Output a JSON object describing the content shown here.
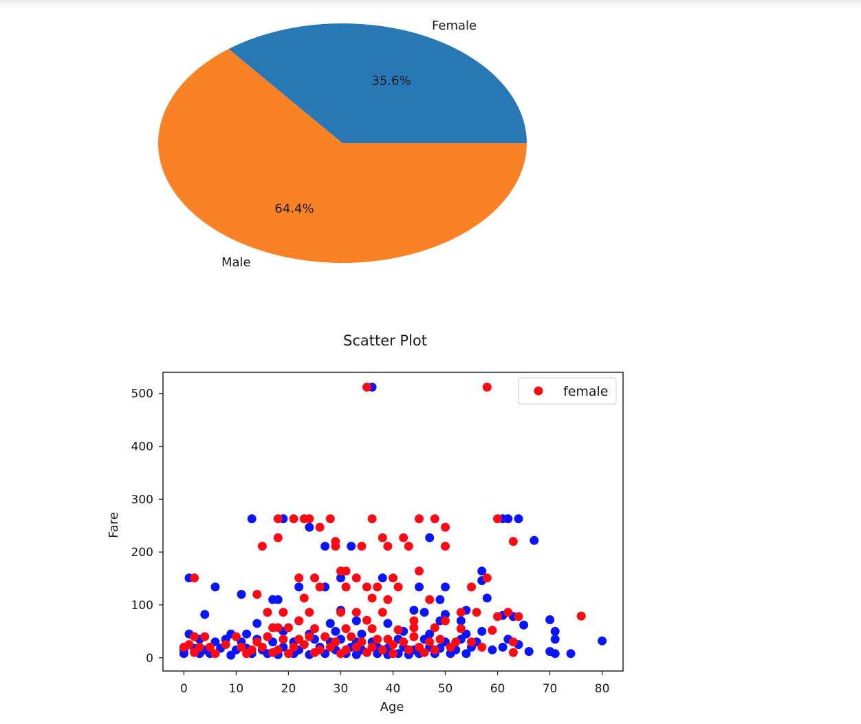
{
  "colors": {
    "female_slice": "#2878b5",
    "male_slice": "#f98227",
    "female_points": "#ff0a14",
    "male_points": "#0a14ff",
    "axis": "#222222"
  },
  "chart_data": [
    {
      "type": "pie",
      "slices": [
        {
          "label": "Female",
          "value": 35.6,
          "pct_label": "35.6%"
        },
        {
          "label": "Male",
          "value": 64.4,
          "pct_label": "64.4%"
        }
      ]
    },
    {
      "type": "scatter",
      "title": "Scatter Plot",
      "xlabel": "Age",
      "ylabel": "Fare",
      "xlim": [
        -4,
        84
      ],
      "ylim": [
        -25,
        540
      ],
      "xticks": [
        0,
        10,
        20,
        30,
        40,
        50,
        60,
        70,
        80
      ],
      "yticks": [
        0,
        100,
        200,
        300,
        400,
        500
      ],
      "legend": {
        "placement": "top-right",
        "entries": [
          "female"
        ]
      },
      "series": [
        {
          "name": "female",
          "color": "#ff0a14",
          "points": [
            [
              35,
              512
            ],
            [
              58,
              512
            ],
            [
              18,
              263
            ],
            [
              21,
              263
            ],
            [
              23,
              263
            ],
            [
              24,
              263
            ],
            [
              28,
              263
            ],
            [
              36,
              263
            ],
            [
              45,
              263
            ],
            [
              48,
              263
            ],
            [
              60,
              263
            ],
            [
              26,
              247
            ],
            [
              50,
              247
            ],
            [
              18,
              227
            ],
            [
              38,
              227
            ],
            [
              42,
              227
            ],
            [
              29,
              220
            ],
            [
              63,
              220
            ],
            [
              15,
              211
            ],
            [
              29,
              211
            ],
            [
              34,
              211
            ],
            [
              39,
              211
            ],
            [
              43,
              211
            ],
            [
              50,
              211
            ],
            [
              30,
              164
            ],
            [
              31,
              164
            ],
            [
              45,
              164
            ],
            [
              2,
              151
            ],
            [
              22,
              151
            ],
            [
              25,
              151
            ],
            [
              33,
              151
            ],
            [
              40,
              151
            ],
            [
              58,
              151
            ],
            [
              26,
              134
            ],
            [
              31,
              134
            ],
            [
              35,
              134
            ],
            [
              37,
              134
            ],
            [
              41,
              134
            ],
            [
              55,
              134
            ],
            [
              14,
              120
            ],
            [
              23,
              113
            ],
            [
              36,
              113
            ],
            [
              39,
              110
            ],
            [
              47,
              110
            ],
            [
              16,
              86
            ],
            [
              19,
              86
            ],
            [
              24,
              86
            ],
            [
              30,
              86
            ],
            [
              33,
              86
            ],
            [
              38,
              86
            ],
            [
              53,
              86
            ],
            [
              56,
              86
            ],
            [
              62,
              86
            ],
            [
              76,
              79
            ],
            [
              60,
              78
            ],
            [
              64,
              78
            ],
            [
              22,
              70
            ],
            [
              35,
              71
            ],
            [
              44,
              70
            ],
            [
              50,
              70
            ],
            [
              17,
              57
            ],
            [
              18,
              57
            ],
            [
              20,
              57
            ],
            [
              25,
              55
            ],
            [
              31,
              55
            ],
            [
              36,
              55
            ],
            [
              41,
              53
            ],
            [
              44,
              57
            ],
            [
              48,
              57
            ],
            [
              53,
              55
            ],
            [
              59,
              52
            ],
            [
              2,
              40
            ],
            [
              4,
              40
            ],
            [
              10,
              40
            ],
            [
              14,
              30
            ],
            [
              16,
              40
            ],
            [
              19,
              35
            ],
            [
              22,
              35
            ],
            [
              24,
              40
            ],
            [
              27,
              40
            ],
            [
              29,
              30
            ],
            [
              32,
              40
            ],
            [
              34,
              30
            ],
            [
              37,
              35
            ],
            [
              39,
              35
            ],
            [
              42,
              30
            ],
            [
              44,
              40
            ],
            [
              47,
              30
            ],
            [
              49,
              35
            ],
            [
              52,
              30
            ],
            [
              55,
              30
            ],
            [
              63,
              30
            ],
            [
              0,
              20
            ],
            [
              1,
              25
            ],
            [
              3,
              20
            ],
            [
              5,
              20
            ],
            [
              8,
              25
            ],
            [
              11,
              20
            ],
            [
              13,
              15
            ],
            [
              15,
              20
            ],
            [
              18,
              15
            ],
            [
              21,
              20
            ],
            [
              23,
              25
            ],
            [
              26,
              15
            ],
            [
              28,
              20
            ],
            [
              31,
              15
            ],
            [
              33,
              20
            ],
            [
              36,
              20
            ],
            [
              38,
              15
            ],
            [
              40,
              25
            ],
            [
              43,
              15
            ],
            [
              45,
              20
            ],
            [
              48,
              15
            ],
            [
              51,
              20
            ],
            [
              57,
              20
            ],
            [
              63,
              10
            ],
            [
              2,
              10
            ],
            [
              6,
              8
            ],
            [
              12,
              8
            ],
            [
              17,
              10
            ],
            [
              20,
              8
            ],
            [
              25,
              10
            ],
            [
              30,
              8
            ],
            [
              35,
              10
            ],
            [
              40,
              8
            ],
            [
              46,
              10
            ]
          ]
        },
        {
          "name": "",
          "color": "#0a14ff",
          "points": [
            [
              36,
              512
            ],
            [
              13,
              263
            ],
            [
              19,
              263
            ],
            [
              61,
              263
            ],
            [
              62,
              263
            ],
            [
              64,
              263
            ],
            [
              24,
              247
            ],
            [
              47,
              227
            ],
            [
              67,
              222
            ],
            [
              27,
              211
            ],
            [
              32,
              211
            ],
            [
              57,
              164
            ],
            [
              1,
              151
            ],
            [
              30,
              151
            ],
            [
              38,
              151
            ],
            [
              57,
              146
            ],
            [
              6,
              134
            ],
            [
              22,
              134
            ],
            [
              27,
              134
            ],
            [
              45,
              134
            ],
            [
              50,
              134
            ],
            [
              11,
              120
            ],
            [
              17,
              110
            ],
            [
              18,
              110
            ],
            [
              49,
              110
            ],
            [
              58,
              113
            ],
            [
              4,
              82
            ],
            [
              16,
              86
            ],
            [
              30,
              90
            ],
            [
              44,
              90
            ],
            [
              46,
              86
            ],
            [
              50,
              82
            ],
            [
              54,
              90
            ],
            [
              61,
              80
            ],
            [
              63,
              78
            ],
            [
              70,
              72
            ],
            [
              14,
              65
            ],
            [
              22,
              70
            ],
            [
              28,
              65
            ],
            [
              33,
              70
            ],
            [
              39,
              65
            ],
            [
              49,
              70
            ],
            [
              53,
              70
            ],
            [
              65,
              62
            ],
            [
              1,
              45
            ],
            [
              9,
              45
            ],
            [
              12,
              45
            ],
            [
              19,
              50
            ],
            [
              24,
              45
            ],
            [
              29,
              50
            ],
            [
              34,
              45
            ],
            [
              42,
              50
            ],
            [
              47,
              45
            ],
            [
              54,
              45
            ],
            [
              57,
              50
            ],
            [
              71,
              50
            ],
            [
              3,
              35
            ],
            [
              6,
              30
            ],
            [
              8,
              35
            ],
            [
              11,
              30
            ],
            [
              14,
              35
            ],
            [
              17,
              30
            ],
            [
              21,
              30
            ],
            [
              25,
              35
            ],
            [
              28,
              30
            ],
            [
              30,
              35
            ],
            [
              33,
              30
            ],
            [
              36,
              30
            ],
            [
              41,
              35
            ],
            [
              46,
              35
            ],
            [
              50,
              30
            ],
            [
              53,
              35
            ],
            [
              56,
              30
            ],
            [
              62,
              35
            ],
            [
              71,
              35
            ],
            [
              80,
              32
            ],
            [
              0,
              15
            ],
            [
              2,
              18
            ],
            [
              4,
              15
            ],
            [
              7,
              18
            ],
            [
              10,
              15
            ],
            [
              12,
              18
            ],
            [
              15,
              15
            ],
            [
              19,
              20
            ],
            [
              22,
              15
            ],
            [
              26,
              20
            ],
            [
              29,
              15
            ],
            [
              32,
              20
            ],
            [
              34,
              15
            ],
            [
              37,
              20
            ],
            [
              39,
              18
            ],
            [
              42,
              20
            ],
            [
              44,
              15
            ],
            [
              47,
              20
            ],
            [
              49,
              18
            ],
            [
              52,
              15
            ],
            [
              55,
              20
            ],
            [
              59,
              15
            ],
            [
              61,
              20
            ],
            [
              64,
              25
            ],
            [
              66,
              12
            ],
            [
              70,
              12
            ],
            [
              0,
              8
            ],
            [
              3,
              8
            ],
            [
              5,
              8
            ],
            [
              9,
              5
            ],
            [
              13,
              8
            ],
            [
              16,
              8
            ],
            [
              18,
              6
            ],
            [
              21,
              8
            ],
            [
              24,
              6
            ],
            [
              27,
              8
            ],
            [
              31,
              8
            ],
            [
              33,
              6
            ],
            [
              37,
              8
            ],
            [
              39,
              6
            ],
            [
              41,
              8
            ],
            [
              43,
              6
            ],
            [
              45,
              8
            ],
            [
              48,
              8
            ],
            [
              51,
              8
            ],
            [
              54,
              8
            ],
            [
              71,
              8
            ],
            [
              74,
              8
            ]
          ]
        }
      ]
    }
  ]
}
